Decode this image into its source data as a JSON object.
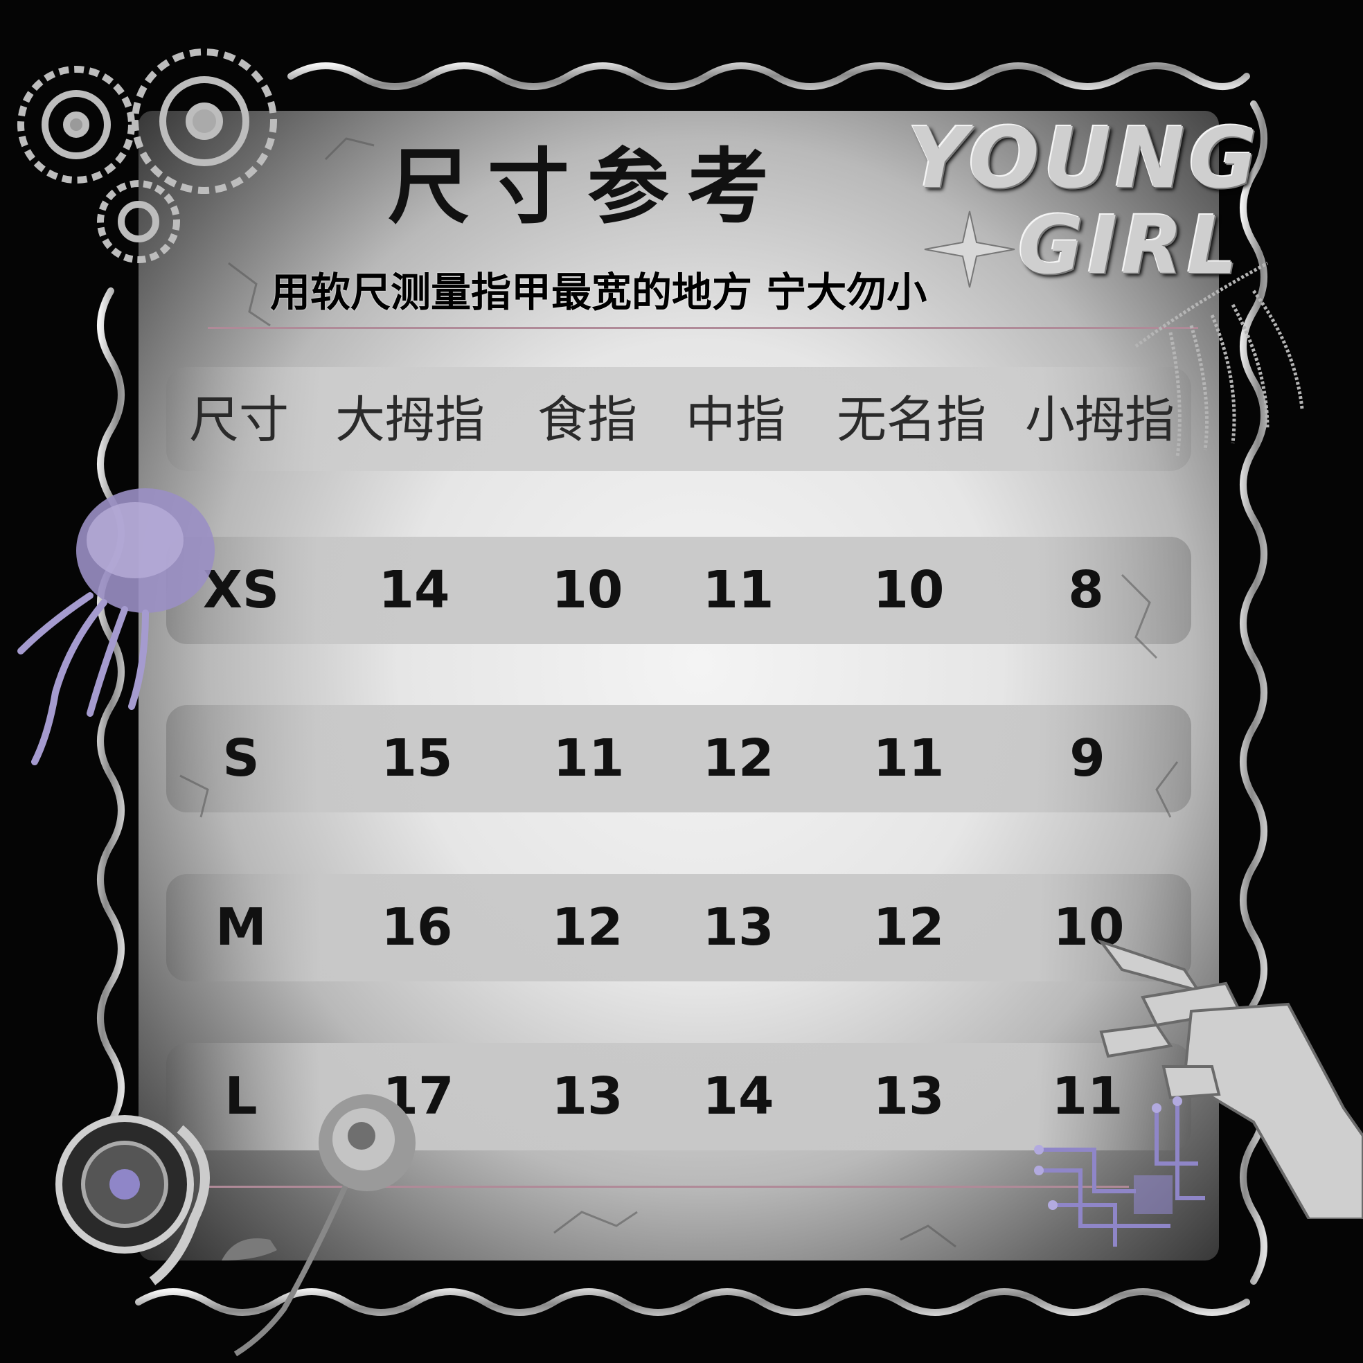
{
  "title": "尺寸参考",
  "subtitle": "用软尺测量指甲最宽的地方 宁大勿小",
  "logo": {
    "line1": "YOUNG",
    "line2": "GIRL"
  },
  "table": {
    "headers": [
      "尺寸",
      "大拇指",
      "食指",
      "中指",
      "无名指",
      "小拇指"
    ],
    "rows": [
      [
        "XS",
        "14",
        "10",
        "11",
        "10",
        "8"
      ],
      [
        "S",
        "15",
        "11",
        "12",
        "11",
        "9"
      ],
      [
        "M",
        "16",
        "12",
        "13",
        "12",
        "10"
      ],
      [
        "L",
        "17",
        "13",
        "14",
        "13",
        "11"
      ]
    ]
  },
  "colors": {
    "background": "#050505",
    "panel": "#e6e6e6",
    "band": "#cfcfcf",
    "rule": "#b08a98",
    "jellyfish": "#9a8fc4",
    "circuit": "#8f86c8"
  },
  "icons": [
    "gears-icon",
    "jellyfish-icon",
    "rose-icon",
    "robot-hand-icon",
    "circuit-icon",
    "watch-movement-icon",
    "chain-tassel-icon",
    "sparkle-icon",
    "tribal-flame-icon"
  ]
}
